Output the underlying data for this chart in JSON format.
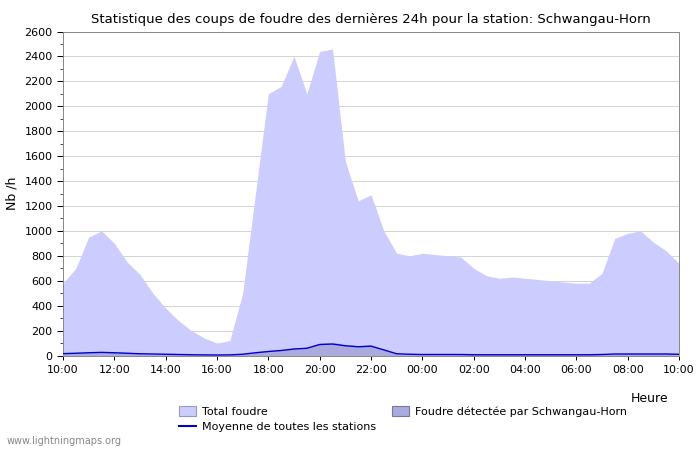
{
  "title": "Statistique des coups de foudre des dernières 24h pour la station: Schwangau-Horn",
  "xlabel": "Heure",
  "ylabel": "Nb /h",
  "ylim": [
    0,
    2600
  ],
  "yticks": [
    0,
    200,
    400,
    600,
    800,
    1000,
    1200,
    1400,
    1600,
    1800,
    2000,
    2200,
    2400,
    2600
  ],
  "x_labels": [
    "10:00",
    "12:00",
    "14:00",
    "16:00",
    "18:00",
    "20:00",
    "22:00",
    "00:00",
    "02:00",
    "04:00",
    "06:00",
    "08:00",
    "10:00"
  ],
  "watermark": "www.lightningmaps.org",
  "total_foudre_color": "#ccccff",
  "detected_foudre_color": "#aaaadd",
  "moyenne_color": "#0000cc",
  "total_foudre": [
    580,
    700,
    950,
    1000,
    900,
    750,
    650,
    500,
    380,
    280,
    200,
    140,
    100,
    120,
    500,
    1300,
    2100,
    2160,
    2400,
    2100,
    2440,
    2460,
    1560,
    1240,
    1290,
    1000,
    820,
    800,
    820,
    810,
    800,
    790,
    700,
    640,
    620,
    630,
    620,
    610,
    600,
    590,
    580,
    580,
    660,
    940,
    980,
    1000,
    910,
    840,
    740
  ],
  "detected_foudre": [
    20,
    25,
    28,
    30,
    25,
    22,
    15,
    12,
    10,
    8,
    6,
    5,
    4,
    5,
    12,
    28,
    40,
    50,
    60,
    65,
    100,
    105,
    90,
    80,
    85,
    50,
    15,
    12,
    10,
    10,
    10,
    10,
    8,
    8,
    8,
    8,
    8,
    8,
    8,
    8,
    8,
    8,
    10,
    15,
    15,
    15,
    15,
    15,
    12
  ],
  "moyenne": [
    15,
    18,
    22,
    25,
    22,
    18,
    14,
    12,
    10,
    8,
    6,
    5,
    4,
    5,
    10,
    22,
    32,
    40,
    52,
    58,
    88,
    92,
    78,
    70,
    75,
    45,
    14,
    10,
    8,
    8,
    8,
    8,
    6,
    6,
    6,
    6,
    6,
    6,
    6,
    6,
    6,
    6,
    8,
    12,
    12,
    12,
    12,
    12,
    10
  ],
  "legend_label_total": "Total foudre",
  "legend_label_detected": "Foudre détectée par Schwangau-Horn",
  "legend_label_moyenne": "Moyenne de toutes les stations"
}
